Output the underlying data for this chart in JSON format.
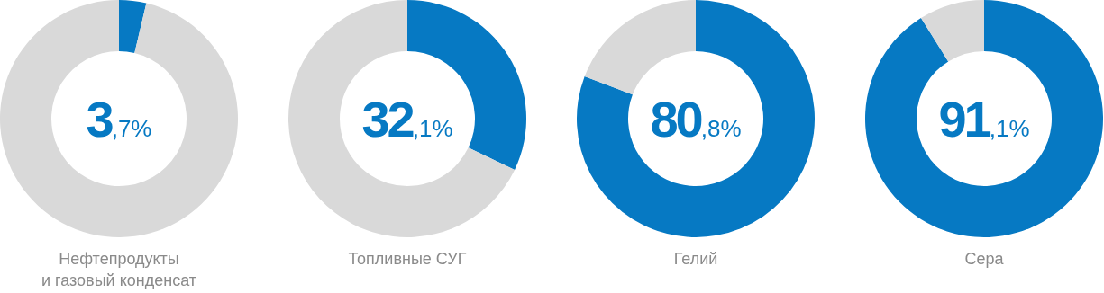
{
  "chart_data": [
    {
      "type": "donut",
      "title": "Нефтепродукты\nи газовый конденсат",
      "categories": [
        null,
        null
      ],
      "values": [
        3.7,
        96.3
      ],
      "colors": [
        "#0679c3",
        "#d9d9d9"
      ],
      "annotations": [
        "3,7%"
      ]
    },
    {
      "type": "donut",
      "title": "Топливные СУГ",
      "categories": [
        null,
        null
      ],
      "values": [
        32.1,
        67.9
      ],
      "colors": [
        "#0679c3",
        "#d9d9d9"
      ],
      "annotations": [
        "32,1%"
      ]
    },
    {
      "type": "donut",
      "title": "Гелий",
      "categories": [
        null,
        null
      ],
      "values": [
        80.8,
        19.2
      ],
      "colors": [
        "#0679c3",
        "#d9d9d9"
      ],
      "annotations": [
        "80,8%"
      ]
    },
    {
      "type": "donut",
      "title": "Сера",
      "categories": [
        null,
        null
      ],
      "values": [
        91.1,
        8.9
      ],
      "colors": [
        "#0679c3",
        "#d9d9d9"
      ],
      "annotations": [
        "91,1%"
      ]
    }
  ]
}
